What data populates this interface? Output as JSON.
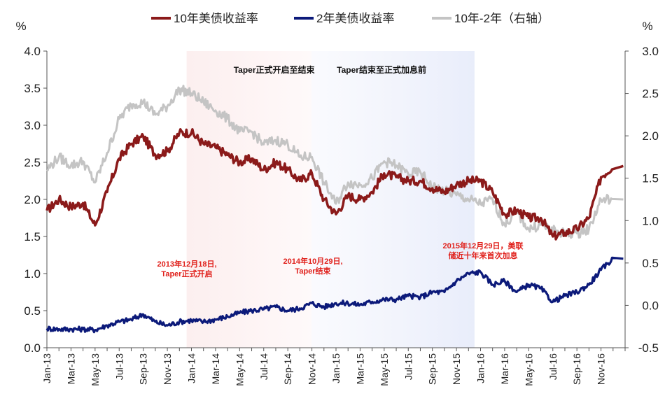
{
  "chart_data": {
    "type": "line",
    "left_unit": "%",
    "right_unit": "%",
    "ylim_left": [
      0,
      4
    ],
    "ylim_right": [
      -0.5,
      3
    ],
    "yticks_left": [
      "0.0",
      "0.5",
      "1.0",
      "1.5",
      "2.0",
      "2.5",
      "3.0",
      "3.5",
      "4.0"
    ],
    "yticks_right": [
      "-0.5",
      "0.0",
      "0.5",
      "1.0",
      "1.5",
      "2.0",
      "2.5",
      "3.0"
    ],
    "xticks": [
      "Jan-13",
      "Mar-13",
      "May-13",
      "Jul-13",
      "Sep-13",
      "Nov-13",
      "Jan-14",
      "Mar-14",
      "May-14",
      "Jul-14",
      "Sep-14",
      "Nov-14",
      "Jan-15",
      "Mar-15",
      "May-15",
      "Jul-15",
      "Sep-15",
      "Nov-15",
      "Jan-16",
      "Mar-16",
      "May-16",
      "Jul-16",
      "Sep-16",
      "Nov-16"
    ],
    "periods": [
      {
        "label": "Taper正式开启至结束",
        "from": 11.6,
        "to": 21.97
      },
      {
        "label": "Taper结束至正式加息前",
        "from": 21.97,
        "to": 35.5
      }
    ],
    "annotations": [
      {
        "lines": [
          "2013年12月18日,",
          "Taper正式开启"
        ],
        "x": 11.6
      },
      {
        "lines": [
          "2014年10月29日,",
          "Taper结束"
        ],
        "x": 21.97
      },
      {
        "lines": [
          "2015年12月29日，美联",
          "储近十年来首次加息"
        ],
        "x": 35.5
      }
    ],
    "series": [
      {
        "name": "10年美债收益率",
        "axis": "left",
        "color": "#8b1a1a",
        "x": [
          0,
          1,
          2,
          3,
          4,
          5,
          6,
          7,
          8,
          9,
          10,
          11,
          12,
          13,
          14,
          15,
          16,
          17,
          18,
          19,
          20,
          21,
          22,
          23,
          24,
          25,
          26,
          27,
          28,
          29,
          30,
          31,
          32,
          33,
          34,
          35,
          36,
          37,
          38,
          39,
          40,
          41,
          42,
          43,
          44,
          45,
          46,
          47
        ],
        "y": [
          1.85,
          2.0,
          1.9,
          1.95,
          1.65,
          2.1,
          2.55,
          2.75,
          2.85,
          2.6,
          2.65,
          2.9,
          2.9,
          2.75,
          2.7,
          2.6,
          2.5,
          2.55,
          2.4,
          2.5,
          2.4,
          2.25,
          2.35,
          2.0,
          1.8,
          2.05,
          2.0,
          2.1,
          2.35,
          2.3,
          2.25,
          2.25,
          2.15,
          2.1,
          2.2,
          2.25,
          2.25,
          2.1,
          1.8,
          1.85,
          1.75,
          1.75,
          1.5,
          1.55,
          1.6,
          1.75,
          2.3,
          2.45
        ]
      },
      {
        "name": "2年美债收益率",
        "axis": "left",
        "color": "#0c1a7a",
        "x": [
          0,
          1,
          2,
          3,
          4,
          5,
          6,
          7,
          8,
          9,
          10,
          11,
          12,
          13,
          14,
          15,
          16,
          17,
          18,
          19,
          20,
          21,
          22,
          23,
          24,
          25,
          26,
          27,
          28,
          29,
          30,
          31,
          32,
          33,
          34,
          35,
          36,
          37,
          38,
          39,
          40,
          41,
          42,
          43,
          44,
          45,
          46,
          47
        ],
        "y": [
          0.26,
          0.25,
          0.25,
          0.25,
          0.24,
          0.3,
          0.35,
          0.38,
          0.45,
          0.35,
          0.3,
          0.35,
          0.37,
          0.35,
          0.38,
          0.42,
          0.47,
          0.5,
          0.52,
          0.55,
          0.5,
          0.53,
          0.6,
          0.55,
          0.6,
          0.6,
          0.58,
          0.62,
          0.65,
          0.65,
          0.7,
          0.68,
          0.75,
          0.75,
          0.9,
          1.0,
          1.02,
          0.85,
          0.9,
          0.75,
          0.85,
          0.8,
          0.62,
          0.7,
          0.75,
          0.85,
          1.05,
          1.2
        ]
      },
      {
        "name": "10年-2年（右轴）",
        "axis": "right",
        "color": "#c4c4c4",
        "x": [
          0,
          1,
          2,
          3,
          4,
          5,
          6,
          7,
          8,
          9,
          10,
          11,
          12,
          13,
          14,
          15,
          16,
          17,
          18,
          19,
          20,
          21,
          22,
          23,
          24,
          25,
          26,
          27,
          28,
          29,
          30,
          31,
          32,
          33,
          34,
          35,
          36,
          37,
          38,
          39,
          40,
          41,
          42,
          43,
          44,
          45,
          46,
          47
        ],
        "y": [
          1.6,
          1.75,
          1.65,
          1.7,
          1.45,
          1.8,
          2.2,
          2.37,
          2.4,
          2.25,
          2.35,
          2.55,
          2.5,
          2.4,
          2.3,
          2.2,
          2.05,
          2.05,
          1.9,
          1.95,
          1.9,
          1.75,
          1.75,
          1.45,
          1.2,
          1.45,
          1.42,
          1.5,
          1.7,
          1.65,
          1.55,
          1.57,
          1.4,
          1.35,
          1.3,
          1.25,
          1.2,
          1.25,
          0.95,
          1.1,
          0.9,
          0.95,
          0.88,
          0.85,
          0.85,
          0.9,
          1.25,
          1.25
        ]
      }
    ]
  }
}
